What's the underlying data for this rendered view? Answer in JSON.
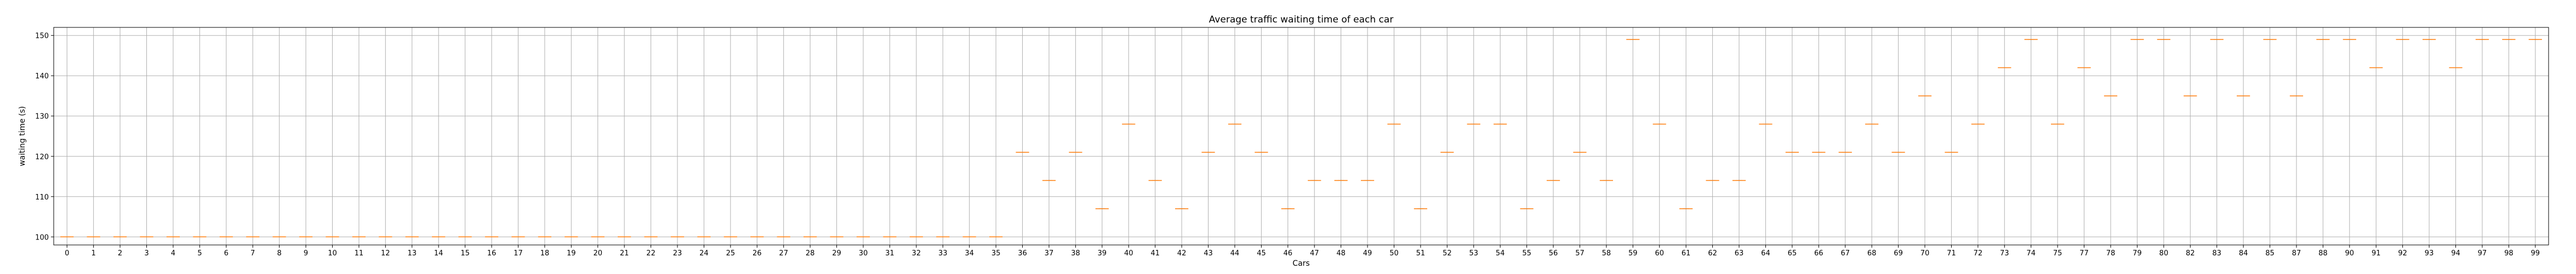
{
  "chart_data": {
    "type": "boxplot",
    "title": "Average traffic waiting time of each car",
    "xlabel": "Cars",
    "ylabel": "waiting time (s)",
    "grid": true,
    "ylim": [
      98,
      152
    ],
    "yticks": [
      100,
      110,
      120,
      130,
      140,
      150
    ],
    "colors": {
      "box": "#000000",
      "median": "#ff7f0e",
      "grid": "#b0b0b0"
    },
    "categories": [
      "0",
      "1",
      "2",
      "3",
      "4",
      "5",
      "6",
      "7",
      "8",
      "9",
      "10",
      "11",
      "12",
      "13",
      "14",
      "15",
      "16",
      "17",
      "18",
      "19",
      "20",
      "21",
      "22",
      "23",
      "24",
      "25",
      "26",
      "27",
      "28",
      "29",
      "30",
      "31",
      "32",
      "33",
      "34",
      "35",
      "36",
      "37",
      "38",
      "39",
      "40",
      "41",
      "42",
      "43",
      "44",
      "45",
      "46",
      "47",
      "48",
      "49",
      "50",
      "51",
      "52",
      "53",
      "54",
      "55",
      "56",
      "57",
      "58",
      "59",
      "60",
      "61",
      "62",
      "63",
      "64",
      "65",
      "66",
      "67",
      "68",
      "69",
      "70",
      "71",
      "72",
      "73",
      "74",
      "75",
      "77",
      "78",
      "79",
      "80",
      "82",
      "83",
      "84",
      "85",
      "87",
      "88",
      "90",
      "91",
      "92",
      "93",
      "94",
      "97",
      "98",
      "99"
    ],
    "values": [
      100,
      100,
      100,
      100,
      100,
      100,
      100,
      100,
      100,
      100,
      100,
      100,
      100,
      100,
      100,
      100,
      100,
      100,
      100,
      100,
      100,
      100,
      100,
      100,
      100,
      100,
      100,
      100,
      100,
      100,
      100,
      100,
      100,
      100,
      100,
      100,
      121,
      114,
      121,
      107,
      128,
      114,
      107,
      121,
      128,
      121,
      107,
      114,
      114,
      114,
      128,
      107,
      121,
      128,
      128,
      107,
      114,
      121,
      114,
      149,
      128,
      107,
      114,
      114,
      128,
      121,
      121,
      121,
      128,
      121,
      135,
      121,
      128,
      142,
      149,
      128,
      142,
      135,
      149,
      149,
      135,
      149,
      135,
      149,
      135,
      149,
      149,
      142,
      149,
      149,
      142,
      149,
      149,
      149
    ]
  }
}
